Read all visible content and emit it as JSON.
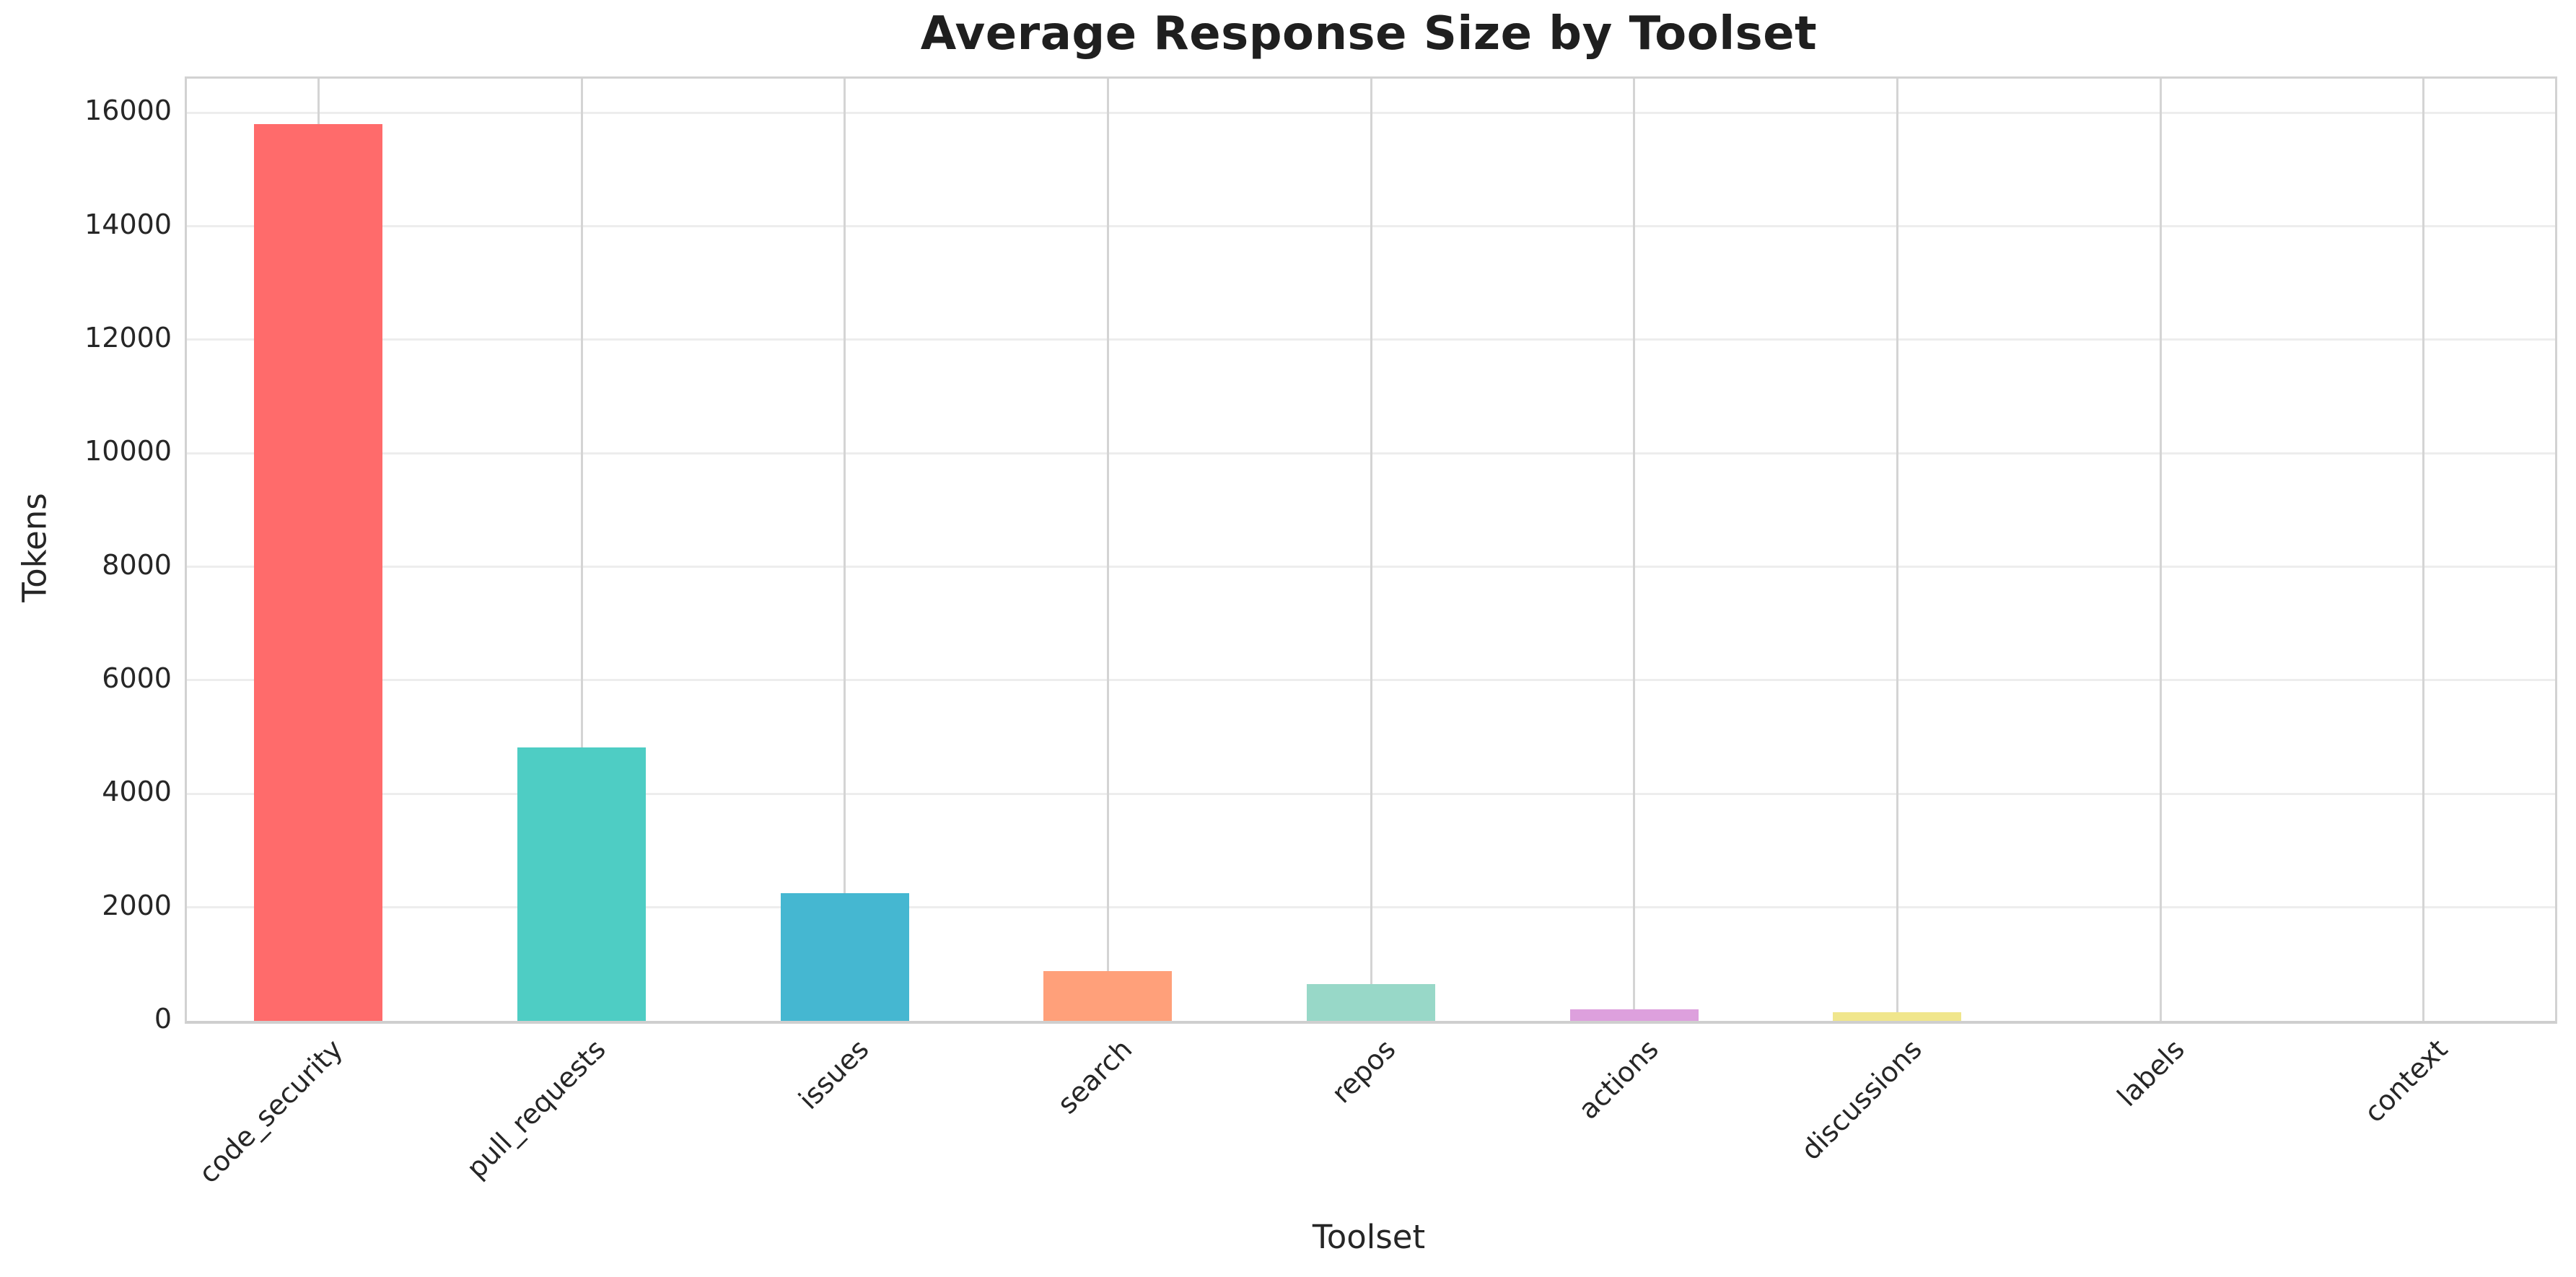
{
  "colors": {
    "background": "#ffffff",
    "grid_horizontal": "#ededed",
    "grid_vertical": "#d4d4d4",
    "spine": "#d2d2d2",
    "text": "#262626",
    "title_text": "#1f1f1f"
  },
  "chart_data": {
    "type": "bar",
    "title": "Average Response Size by Toolset",
    "xlabel": "Toolset",
    "ylabel": "Tokens",
    "categories": [
      "code_security",
      "pull_requests",
      "issues",
      "search",
      "repos",
      "actions",
      "discussions",
      "labels",
      "context"
    ],
    "values": [
      15800,
      4820,
      2250,
      880,
      650,
      200,
      150,
      0,
      0
    ],
    "bar_colors": [
      "#FF6B6B",
      "#4ECDC4",
      "#45B7D1",
      "#FFA07A",
      "#98D8C8",
      "#DDA0DD",
      "#F0E68C",
      "#FF6B6B",
      "#4ECDC4"
    ],
    "yticks": [
      0,
      2000,
      4000,
      6000,
      8000,
      10000,
      12000,
      14000,
      16000
    ],
    "ylim": [
      0,
      16600
    ],
    "grid": true,
    "legend_position": "none",
    "x_tick_rotation_deg": 45
  }
}
